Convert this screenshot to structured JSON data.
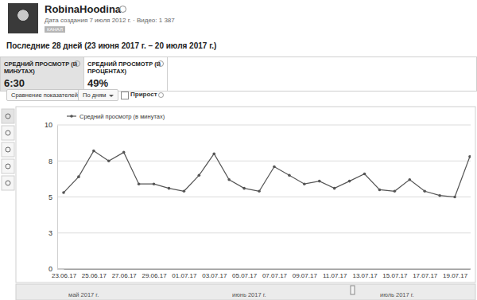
{
  "header": {
    "channel": "RobinaHoodina",
    "created": "Дата создания 7 июля 2012 г. · Видео: 1 387",
    "badge": "КАНАЛ",
    "period": "Последние 28 дней (23 июня 2017 г. – 20 июля 2017 г.)"
  },
  "metrics": [
    {
      "label": "СРЕДНИЙ ПРОСМОТР (В МИНУТАХ)",
      "value": "6:30"
    },
    {
      "label": "СРЕДНИЙ ПРОСМОТР (В ПРОЦЕНТАХ)",
      "value": "49%"
    }
  ],
  "toolbar": {
    "compare": "Сравнение показателей",
    "period": "По дням",
    "growth": "Прирост"
  },
  "navigator": [
    "май 2017 г.",
    "июнь 2017 г.",
    "июль 2017 г."
  ],
  "chart_data": {
    "type": "line",
    "categories": [
      "23.06.17",
      null,
      "25.06.17",
      null,
      "27.06.17",
      null,
      "29.06.17",
      null,
      "01.07.17",
      null,
      "03.07.17",
      null,
      "05.07.17",
      null,
      "07.07.17",
      null,
      "09.07.17",
      null,
      "11.07.17",
      null,
      "13.07.17",
      null,
      "15.07.17",
      null,
      "17.07.17",
      null,
      "19.07.17",
      null
    ],
    "series": [
      {
        "name": "Средний просмотр (в минутах)",
        "color": "#555555",
        "marker": "circle",
        "values": [
          5.3,
          6.4,
          8.2,
          7.5,
          8.1,
          5.9,
          5.9,
          5.6,
          5.4,
          6.5,
          8.0,
          6.2,
          5.6,
          5.4,
          7.1,
          6.5,
          5.9,
          6.1,
          5.6,
          6.1,
          6.6,
          5.5,
          5.4,
          6.2,
          5.4,
          5.1,
          5.0,
          7.8
        ]
      }
    ],
    "ylim": [
      0,
      10
    ],
    "yticks": [
      0,
      {
        "value": 2.5,
        "label": "3"
      },
      5,
      {
        "value": 7.5,
        "label": "8"
      },
      10
    ],
    "grid": true,
    "legend": "top-left"
  }
}
